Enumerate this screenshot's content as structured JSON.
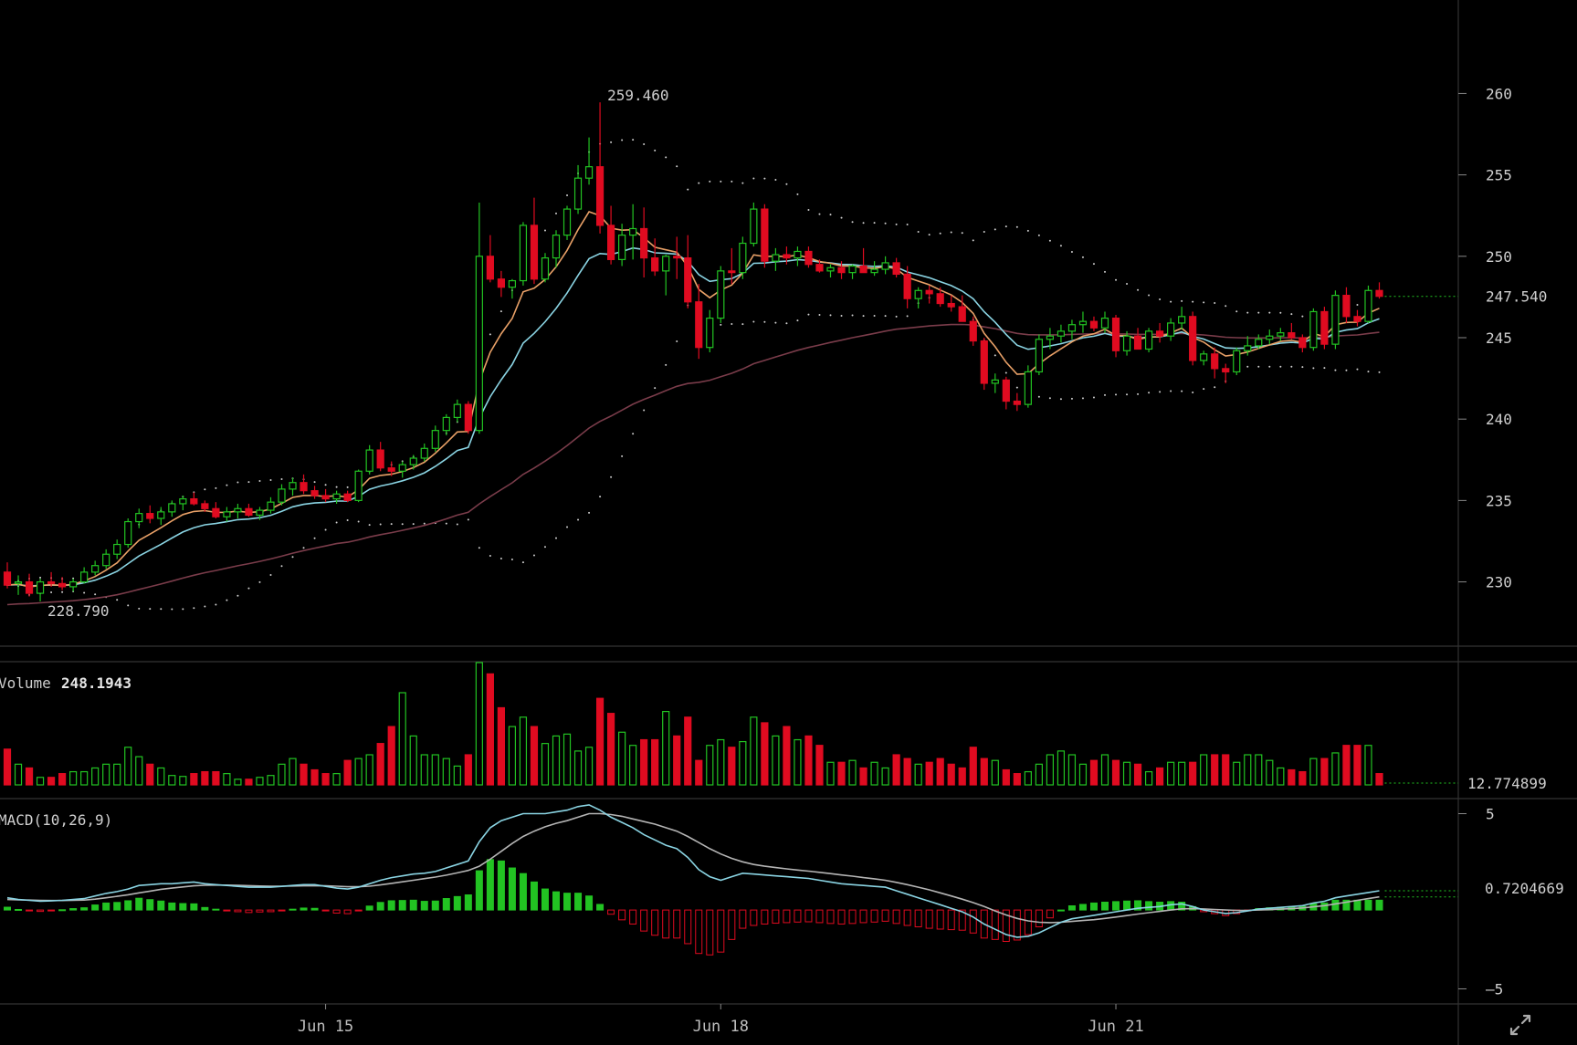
{
  "chart_data": [
    {
      "type": "candlestick",
      "panel": "price",
      "y_axis": {
        "ticks": [
          230,
          235,
          240,
          245,
          250,
          255,
          260
        ],
        "ylim": [
          226.5,
          263.5
        ],
        "position": "right"
      },
      "x_axis": {
        "ticks": [
          {
            "label": "Jun 15",
            "index": 29
          },
          {
            "label": "Jun 18",
            "index": 65
          },
          {
            "label": "Jun 21",
            "index": 101
          }
        ]
      },
      "annotations": {
        "high": "259.460",
        "low": "228.790",
        "last_price": "247.540"
      },
      "ohlc": [
        [
          230.6,
          231.2,
          229.6,
          229.8
        ],
        [
          229.9,
          230.4,
          229.2,
          230.0
        ],
        [
          230.0,
          230.5,
          229.1,
          229.3
        ],
        [
          229.3,
          230.2,
          228.8,
          230.0
        ],
        [
          230.0,
          230.6,
          229.7,
          229.9
        ],
        [
          229.9,
          230.3,
          229.5,
          229.7
        ],
        [
          229.7,
          230.2,
          229.4,
          230.0
        ],
        [
          230.0,
          230.9,
          229.9,
          230.6
        ],
        [
          230.6,
          231.3,
          230.4,
          231.0
        ],
        [
          231.0,
          232.0,
          230.8,
          231.7
        ],
        [
          231.7,
          232.6,
          231.4,
          232.3
        ],
        [
          232.3,
          233.9,
          232.1,
          233.7
        ],
        [
          233.7,
          234.5,
          233.3,
          234.2
        ],
        [
          234.2,
          234.7,
          233.6,
          233.9
        ],
        [
          233.9,
          234.6,
          233.5,
          234.3
        ],
        [
          234.3,
          235.0,
          234.0,
          234.8
        ],
        [
          234.8,
          235.3,
          234.4,
          235.1
        ],
        [
          235.1,
          235.5,
          234.7,
          234.8
        ],
        [
          234.8,
          235.0,
          234.3,
          234.5
        ],
        [
          234.5,
          234.9,
          233.9,
          234.0
        ],
        [
          234.0,
          234.6,
          233.7,
          234.3
        ],
        [
          234.3,
          234.8,
          233.9,
          234.5
        ],
        [
          234.5,
          234.8,
          234.0,
          234.1
        ],
        [
          234.1,
          234.6,
          233.8,
          234.4
        ],
        [
          234.4,
          235.2,
          234.2,
          234.9
        ],
        [
          234.9,
          236.0,
          234.7,
          235.7
        ],
        [
          235.7,
          236.4,
          235.3,
          236.1
        ],
        [
          236.1,
          236.6,
          235.4,
          235.6
        ],
        [
          235.6,
          235.9,
          235.1,
          235.3
        ],
        [
          235.3,
          235.7,
          234.9,
          235.1
        ],
        [
          235.1,
          235.6,
          234.8,
          235.4
        ],
        [
          235.4,
          235.6,
          234.9,
          235.0
        ],
        [
          235.0,
          236.9,
          234.9,
          236.8
        ],
        [
          236.8,
          238.4,
          236.6,
          238.1
        ],
        [
          238.1,
          238.6,
          236.8,
          237.0
        ],
        [
          237.0,
          237.4,
          236.5,
          236.8
        ],
        [
          236.8,
          237.4,
          236.4,
          237.2
        ],
        [
          237.2,
          237.8,
          236.9,
          237.6
        ],
        [
          237.6,
          238.5,
          237.4,
          238.2
        ],
        [
          238.2,
          239.6,
          238.0,
          239.3
        ],
        [
          239.3,
          240.3,
          239.0,
          240.1
        ],
        [
          240.1,
          241.2,
          239.8,
          240.9
        ],
        [
          240.9,
          241.1,
          239.1,
          239.3
        ],
        [
          239.3,
          253.3,
          239.1,
          250.0
        ],
        [
          250.0,
          251.3,
          248.4,
          248.6
        ],
        [
          248.6,
          249.1,
          247.5,
          248.1
        ],
        [
          248.1,
          248.6,
          247.4,
          248.5
        ],
        [
          248.5,
          252.1,
          248.2,
          251.9
        ],
        [
          251.9,
          253.6,
          248.3,
          248.6
        ],
        [
          248.6,
          250.2,
          248.4,
          249.9
        ],
        [
          249.9,
          251.6,
          249.3,
          251.3
        ],
        [
          251.3,
          253.1,
          251.0,
          252.9
        ],
        [
          252.9,
          255.6,
          252.6,
          254.8
        ],
        [
          254.8,
          257.3,
          254.4,
          255.5
        ],
        [
          255.5,
          259.46,
          251.4,
          251.9
        ],
        [
          251.9,
          253.1,
          249.5,
          249.8
        ],
        [
          249.8,
          252.0,
          249.4,
          251.3
        ],
        [
          251.3,
          253.2,
          249.8,
          251.7
        ],
        [
          251.7,
          253.0,
          248.7,
          249.9
        ],
        [
          249.9,
          251.1,
          248.8,
          249.1
        ],
        [
          249.1,
          250.1,
          247.6,
          250.0
        ],
        [
          250.0,
          251.2,
          248.6,
          249.9
        ],
        [
          249.9,
          251.3,
          246.8,
          247.2
        ],
        [
          247.2,
          248.3,
          243.7,
          244.4
        ],
        [
          244.4,
          246.7,
          244.1,
          246.2
        ],
        [
          246.2,
          249.4,
          245.9,
          249.1
        ],
        [
          249.1,
          250.5,
          248.3,
          249.0
        ],
        [
          249.0,
          251.2,
          248.6,
          250.8
        ],
        [
          250.8,
          253.3,
          250.6,
          252.9
        ],
        [
          252.9,
          253.2,
          249.3,
          249.7
        ],
        [
          249.7,
          250.5,
          249.1,
          250.1
        ],
        [
          250.1,
          250.6,
          249.5,
          249.9
        ],
        [
          249.9,
          250.6,
          249.4,
          250.3
        ],
        [
          250.3,
          250.6,
          249.3,
          249.5
        ],
        [
          249.5,
          249.8,
          249.0,
          249.1
        ],
        [
          249.1,
          249.5,
          248.7,
          249.3
        ],
        [
          249.3,
          249.7,
          248.6,
          249.0
        ],
        [
          249.0,
          249.5,
          248.6,
          249.4
        ],
        [
          249.4,
          250.5,
          249.1,
          249.0
        ],
        [
          249.0,
          249.7,
          248.8,
          249.2
        ],
        [
          249.2,
          250.0,
          248.9,
          249.6
        ],
        [
          249.6,
          249.9,
          248.7,
          248.9
        ],
        [
          248.9,
          249.4,
          246.8,
          247.4
        ],
        [
          247.4,
          248.1,
          246.8,
          247.9
        ],
        [
          247.9,
          248.2,
          247.1,
          247.7
        ],
        [
          247.7,
          248.1,
          246.9,
          247.1
        ],
        [
          247.1,
          247.6,
          246.6,
          246.9
        ],
        [
          246.9,
          247.6,
          246.1,
          246.0
        ],
        [
          246.0,
          246.3,
          244.5,
          244.8
        ],
        [
          244.8,
          245.0,
          241.8,
          242.2
        ],
        [
          242.2,
          242.8,
          241.6,
          242.4
        ],
        [
          242.4,
          242.6,
          240.6,
          241.1
        ],
        [
          241.1,
          241.6,
          240.5,
          240.9
        ],
        [
          240.9,
          243.3,
          240.7,
          242.9
        ],
        [
          242.9,
          245.2,
          242.7,
          244.9
        ],
        [
          244.9,
          245.6,
          244.3,
          245.1
        ],
        [
          245.1,
          245.8,
          244.7,
          245.4
        ],
        [
          245.4,
          246.1,
          244.9,
          245.8
        ],
        [
          245.8,
          246.6,
          245.3,
          246.0
        ],
        [
          246.0,
          246.3,
          245.4,
          245.6
        ],
        [
          245.6,
          246.6,
          245.3,
          246.2
        ],
        [
          246.2,
          246.4,
          243.8,
          244.2
        ],
        [
          244.2,
          245.4,
          243.9,
          245.1
        ],
        [
          245.1,
          245.6,
          244.6,
          244.3
        ],
        [
          244.3,
          245.6,
          244.1,
          245.4
        ],
        [
          245.4,
          245.9,
          244.7,
          245.1
        ],
        [
          245.1,
          246.2,
          244.8,
          245.9
        ],
        [
          245.9,
          246.9,
          245.5,
          246.3
        ],
        [
          246.3,
          246.6,
          243.3,
          243.6
        ],
        [
          243.6,
          244.2,
          243.3,
          244.0
        ],
        [
          244.0,
          244.4,
          242.5,
          243.1
        ],
        [
          243.1,
          243.4,
          242.2,
          242.9
        ],
        [
          242.9,
          244.4,
          242.7,
          244.2
        ],
        [
          244.2,
          245.1,
          243.9,
          244.5
        ],
        [
          244.5,
          245.2,
          244.3,
          244.9
        ],
        [
          244.9,
          245.5,
          244.6,
          245.1
        ],
        [
          245.1,
          245.6,
          244.8,
          245.3
        ],
        [
          245.3,
          245.9,
          244.9,
          245.0
        ],
        [
          245.0,
          245.2,
          244.1,
          244.4
        ],
        [
          244.4,
          246.8,
          244.2,
          246.6
        ],
        [
          246.6,
          246.9,
          244.3,
          244.6
        ],
        [
          244.6,
          247.9,
          244.3,
          247.6
        ],
        [
          247.6,
          248.1,
          245.9,
          246.3
        ],
        [
          246.3,
          246.7,
          245.7,
          246.0
        ],
        [
          246.0,
          248.2,
          245.9,
          247.9
        ],
        [
          247.9,
          248.4,
          247.4,
          247.54
        ]
      ]
    },
    {
      "type": "bar",
      "panel": "volume",
      "title": "Volume",
      "current_value": "248.1943",
      "axis_label": "12.774899",
      "values": [
        38,
        22,
        18,
        8,
        8,
        12,
        14,
        14,
        18,
        22,
        22,
        40,
        30,
        22,
        18,
        10,
        9,
        12,
        14,
        14,
        12,
        6,
        6,
        8,
        10,
        22,
        28,
        22,
        16,
        12,
        12,
        26,
        28,
        32,
        44,
        62,
        98,
        52,
        32,
        32,
        28,
        20,
        32,
        130,
        118,
        82,
        62,
        72,
        62,
        44,
        52,
        54,
        36,
        40,
        92,
        76,
        56,
        42,
        48,
        48,
        78,
        52,
        72,
        26,
        42,
        48,
        40,
        46,
        72,
        66,
        52,
        62,
        48,
        52,
        42,
        24,
        24,
        26,
        18,
        24,
        18,
        32,
        28,
        22,
        24,
        28,
        22,
        18,
        40,
        28,
        26,
        16,
        12,
        14,
        22,
        32,
        36,
        32,
        22,
        26,
        32,
        26,
        24,
        22,
        14,
        18,
        24,
        24,
        24,
        32,
        32,
        32,
        24,
        32,
        32,
        26,
        18,
        16,
        14,
        28,
        28,
        34,
        42,
        42,
        42,
        12
      ]
    },
    {
      "type": "line",
      "panel": "macd",
      "title": "MACD(10,26,9)",
      "y_axis": {
        "ticks": [
          5,
          -5
        ],
        "ylim": [
          -5.6,
          5.6
        ],
        "position": "right"
      },
      "current_value": "0.7204669",
      "series": [
        {
          "name": "MACD",
          "values": [
            0.2,
            0.1,
            0.05,
            0.0,
            0.02,
            0.05,
            0.1,
            0.15,
            0.3,
            0.45,
            0.55,
            0.7,
            0.9,
            0.95,
            1.0,
            1.0,
            1.05,
            1.1,
            1.0,
            0.95,
            0.9,
            0.85,
            0.8,
            0.8,
            0.8,
            0.85,
            0.9,
            0.95,
            0.95,
            0.85,
            0.75,
            0.7,
            0.8,
            1.0,
            1.2,
            1.35,
            1.45,
            1.55,
            1.6,
            1.7,
            1.9,
            2.1,
            2.3,
            3.4,
            4.2,
            4.6,
            4.8,
            5.0,
            5.0,
            5.0,
            5.1,
            5.2,
            5.4,
            5.5,
            5.2,
            4.8,
            4.5,
            4.2,
            3.8,
            3.5,
            3.2,
            3.0,
            2.5,
            1.8,
            1.4,
            1.2,
            1.4,
            1.6,
            1.55,
            1.5,
            1.45,
            1.4,
            1.35,
            1.3,
            1.2,
            1.1,
            1.0,
            0.95,
            0.9,
            0.85,
            0.8,
            0.6,
            0.4,
            0.2,
            0.0,
            -0.2,
            -0.4,
            -0.6,
            -0.9,
            -1.3,
            -1.6,
            -1.9,
            -2.05,
            -2.0,
            -1.8,
            -1.5,
            -1.2,
            -1.0,
            -0.9,
            -0.8,
            -0.7,
            -0.6,
            -0.5,
            -0.4,
            -0.35,
            -0.3,
            -0.2,
            -0.15,
            -0.3,
            -0.5,
            -0.6,
            -0.7,
            -0.65,
            -0.55,
            -0.45,
            -0.4,
            -0.35,
            -0.3,
            -0.25,
            -0.1,
            0.0,
            0.2,
            0.3,
            0.4,
            0.5,
            0.6
          ]
        },
        {
          "name": "Signal",
          "values": [
            0.1,
            0.08,
            0.07,
            0.05,
            0.04,
            0.04,
            0.05,
            0.07,
            0.12,
            0.2,
            0.28,
            0.37,
            0.48,
            0.58,
            0.68,
            0.75,
            0.82,
            0.88,
            0.91,
            0.92,
            0.92,
            0.91,
            0.89,
            0.87,
            0.86,
            0.86,
            0.87,
            0.88,
            0.89,
            0.88,
            0.86,
            0.83,
            0.83,
            0.86,
            0.93,
            1.02,
            1.11,
            1.2,
            1.29,
            1.38,
            1.49,
            1.62,
            1.76,
            2.0,
            2.4,
            2.85,
            3.3,
            3.7,
            4.0,
            4.25,
            4.45,
            4.6,
            4.8,
            5.0,
            5.0,
            4.95,
            4.85,
            4.7,
            4.55,
            4.4,
            4.2,
            4.0,
            3.7,
            3.35,
            3.0,
            2.7,
            2.45,
            2.25,
            2.1,
            2.0,
            1.92,
            1.85,
            1.78,
            1.72,
            1.65,
            1.58,
            1.5,
            1.43,
            1.35,
            1.28,
            1.2,
            1.08,
            0.95,
            0.8,
            0.65,
            0.48,
            0.3,
            0.12,
            -0.08,
            -0.3,
            -0.55,
            -0.78,
            -0.98,
            -1.12,
            -1.2,
            -1.22,
            -1.2,
            -1.15,
            -1.1,
            -1.05,
            -0.98,
            -0.9,
            -0.82,
            -0.73,
            -0.65,
            -0.58,
            -0.5,
            -0.43,
            -0.42,
            -0.44,
            -0.47,
            -0.5,
            -0.52,
            -0.52,
            -0.5,
            -0.48,
            -0.45,
            -0.42,
            -0.38,
            -0.32,
            -0.25,
            -0.15,
            -0.05,
            0.05,
            0.15,
            0.25
          ]
        }
      ]
    }
  ],
  "colors": {
    "up": "#22c322",
    "down": "#e00b20",
    "ma_fast": "#e8a067",
    "ma_mid": "#8ad4e3",
    "ma_slow": "#7a3c4a",
    "signal_line": "#b4b4b4",
    "dotted": "#cfcfcf",
    "last_line": "#22c322"
  },
  "ui": {
    "expand_icon": "expand-icon"
  }
}
